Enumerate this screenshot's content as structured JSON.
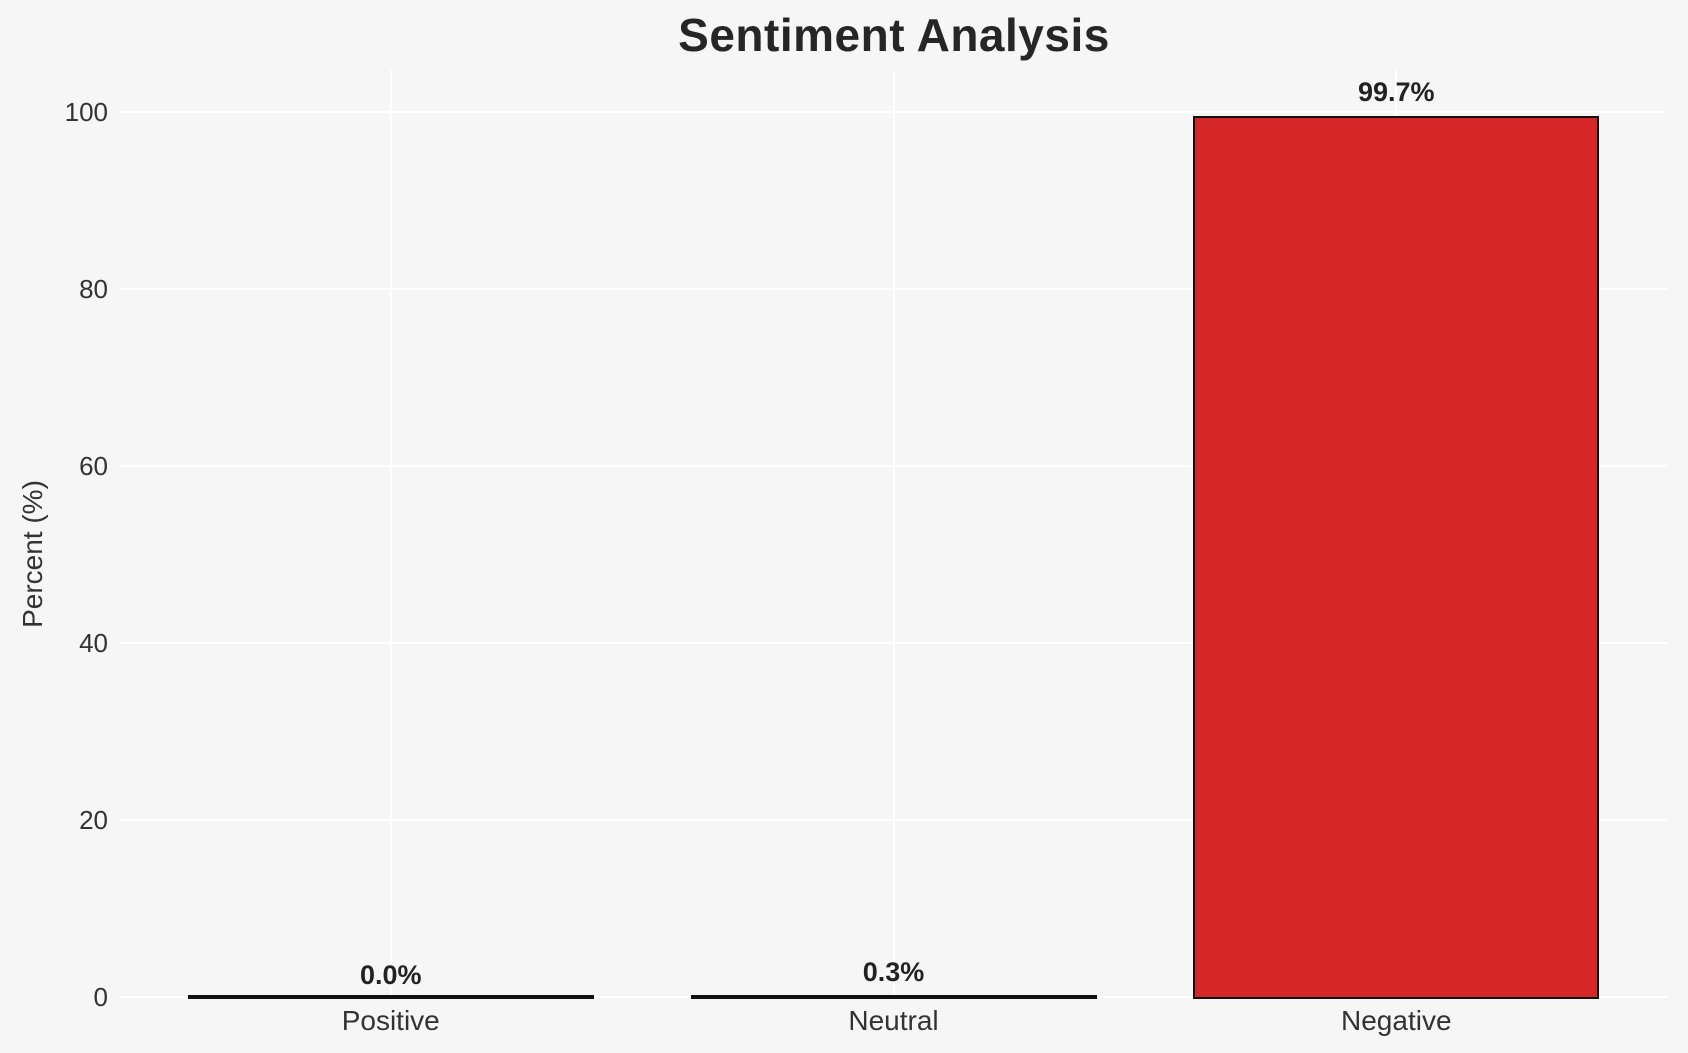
{
  "chart_data": {
    "type": "bar",
    "title": "Sentiment Analysis",
    "ylabel": "Percent (%)",
    "xlabel": "",
    "categories": [
      "Positive",
      "Neutral",
      "Negative"
    ],
    "values": [
      0.0,
      0.3,
      99.7
    ],
    "value_labels": [
      "0.0%",
      "0.3%",
      "99.7%"
    ],
    "yticks": [
      0,
      20,
      40,
      60,
      80,
      100
    ],
    "ylim": [
      0,
      104.7
    ],
    "grid": "horizontal and vertical white gridlines, no axis spines",
    "legend": "none",
    "colors": {
      "background": "#f6f6f6",
      "gridline": "#ffffff",
      "bar_fills": [
        "#1a1a1a",
        "#1a1a1a",
        "#d62728"
      ],
      "bar_edge": "#111111",
      "title_text": "#262626",
      "axis_text": "#333333",
      "value_label_text": "#222222"
    }
  }
}
